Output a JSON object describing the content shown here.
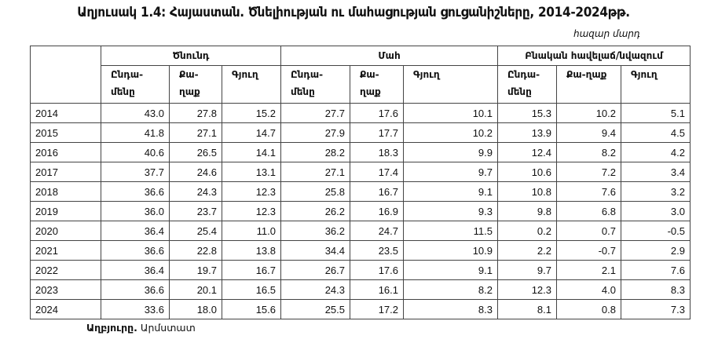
{
  "title": "Աղյուսակ 1.4: Հայաստան. Ծնելիության ու մահացության ցուցանիշները, 2014-2024թթ.",
  "unit": "հազար մարդ",
  "groups": [
    "Ծնունդ",
    "Մահ",
    "Բնական հավելաճ/նվազում"
  ],
  "subheaders": [
    "Ընդա- մենը",
    "Քա- ղաք",
    "Գյուղ",
    "Ընդա- մենը",
    "Քա- ղաք",
    "Գյուղ",
    "Ընդա- մենը",
    "Քա-ղաք",
    "Գյուղ"
  ],
  "rows": [
    [
      "2014",
      "43.0",
      "27.8",
      "15.2",
      "27.7",
      "17.6",
      "10.1",
      "15.3",
      "10.2",
      "5.1"
    ],
    [
      "2015",
      "41.8",
      "27.1",
      "14.7",
      "27.9",
      "17.7",
      "10.2",
      "13.9",
      "9.4",
      "4.5"
    ],
    [
      "2016",
      "40.6",
      "26.5",
      "14.1",
      "28.2",
      "18.3",
      "9.9",
      "12.4",
      "8.2",
      "4.2"
    ],
    [
      "2017",
      "37.7",
      "24.6",
      "13.1",
      "27.1",
      "17.4",
      "9.7",
      "10.6",
      "7.2",
      "3.4"
    ],
    [
      "2018",
      "36.6",
      "24.3",
      "12.3",
      "25.8",
      "16.7",
      "9.1",
      "10.8",
      "7.6",
      "3.2"
    ],
    [
      "2019",
      "36.0",
      "23.7",
      "12.3",
      "26.2",
      "16.9",
      "9.3",
      "9.8",
      "6.8",
      "3.0"
    ],
    [
      "2020",
      "36.4",
      "25.4",
      "11.0",
      "36.2",
      "24.7",
      "11.5",
      "0.2",
      "0.7",
      "-0.5"
    ],
    [
      "2021",
      "36.6",
      "22.8",
      "13.8",
      "34.4",
      "23.5",
      "10.9",
      "2.2",
      "-0.7",
      "2.9"
    ],
    [
      "2022",
      "36.4",
      "19.7",
      "16.7",
      "26.7",
      "17.6",
      "9.1",
      "9.7",
      "2.1",
      "7.6"
    ],
    [
      "2023",
      "36.6",
      "20.1",
      "16.5",
      "24.3",
      "16.1",
      "8.2",
      "12.3",
      "4.0",
      "8.3"
    ],
    [
      "2024",
      "33.6",
      "18.0",
      "15.6",
      "25.5",
      "17.2",
      "8.3",
      "8.1",
      "0.8",
      "7.3"
    ]
  ],
  "source": {
    "label": "Աղբյուրը.",
    "value": "Արմստատ"
  }
}
